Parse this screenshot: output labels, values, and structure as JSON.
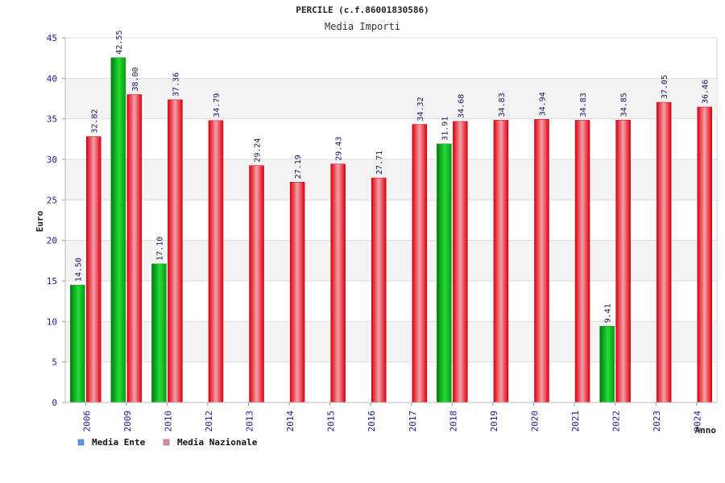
{
  "chart_data": {
    "type": "bar",
    "title": "PERCILE (c.f.86001830586)",
    "subtitle": "Media Importi",
    "ylabel": "Euro",
    "xlabel": "Anno",
    "ylim": [
      0,
      45
    ],
    "yticks": [
      0,
      5,
      10,
      15,
      20,
      25,
      30,
      35,
      40,
      45
    ],
    "grid": true,
    "categories": [
      "2006",
      "2009",
      "2010",
      "2012",
      "2013",
      "2014",
      "2015",
      "2016",
      "2017",
      "2018",
      "2019",
      "2020",
      "2021",
      "2022",
      "2023",
      "2024"
    ],
    "series": [
      {
        "name": "Media Ente",
        "color": "#11cc22",
        "legend_color": "#5599ee",
        "values": [
          14.5,
          42.55,
          17.1,
          null,
          null,
          null,
          null,
          null,
          null,
          31.91,
          null,
          null,
          null,
          9.41,
          null,
          null
        ],
        "labels": [
          "14.50",
          "42.55",
          "17.10",
          null,
          null,
          null,
          null,
          null,
          null,
          "31.91",
          null,
          null,
          null,
          "9.41",
          null,
          null
        ]
      },
      {
        "name": "Media Nazionale",
        "color": "#ee2233",
        "legend_color": "#dd88aa",
        "values": [
          32.82,
          38.0,
          37.36,
          34.79,
          29.24,
          27.19,
          29.43,
          27.71,
          34.32,
          34.68,
          34.83,
          34.94,
          34.83,
          34.85,
          37.05,
          36.46
        ],
        "labels": [
          "32.82",
          "38.00",
          "37.36",
          "34.79",
          "29.24",
          "27.19",
          "29.43",
          "27.71",
          "34.32",
          "34.68",
          "34.83",
          "34.94",
          "34.83",
          "34.85",
          "37.05",
          "36.46"
        ]
      }
    ],
    "legend_position": "bottom-left"
  }
}
